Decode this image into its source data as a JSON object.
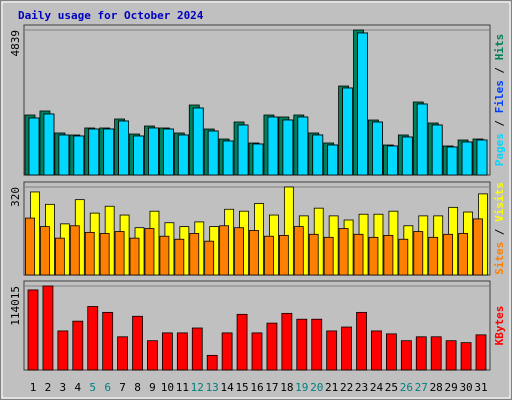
{
  "title": "Daily usage for October 2024",
  "legend_separator": " / ",
  "chart_data": [
    {
      "type": "bar",
      "ylim": [
        0,
        4839
      ],
      "yticks": [
        4839
      ],
      "series": [
        {
          "name": "Hits",
          "color": "#00805c",
          "values": [
            2002,
            2136,
            1402,
            1335,
            1569,
            1569,
            1869,
            1368,
            1635,
            1569,
            1402,
            2336,
            1535,
            1201,
            1769,
            1068,
            2002,
            1936,
            2002,
            1402,
            1068,
            2970,
            4839,
            1835,
            1001,
            1335,
            2436,
            1735,
            968,
            1168,
            1201
          ]
        },
        {
          "name": "Files",
          "color": "#0040ff",
          "values": [
            1902,
            2036,
            1335,
            1301,
            1535,
            1535,
            1802,
            1301,
            1568,
            1535,
            1335,
            2236,
            1468,
            1135,
            1669,
            1034,
            1935,
            1835,
            1935,
            1335,
            1001,
            2903,
            4739,
            1768,
            968,
            1268,
            2369,
            1668,
            935,
            1101,
            1168
          ]
        },
        {
          "name": "Pages",
          "color": "#00d8ff",
          "values": [
            1902,
            2036,
            1335,
            1301,
            1535,
            1535,
            1802,
            1301,
            1568,
            1535,
            1335,
            2236,
            1468,
            1135,
            1669,
            1034,
            1935,
            1835,
            1935,
            1335,
            1001,
            2903,
            4739,
            1768,
            968,
            1268,
            2369,
            1668,
            935,
            1101,
            1168
          ]
        }
      ]
    },
    {
      "type": "bar",
      "ylim": [
        0,
        320
      ],
      "yticks": [
        320
      ],
      "series": [
        {
          "name": "Visits",
          "color": "#ffff00",
          "values": [
            302,
            257,
            186,
            274,
            225,
            250,
            218,
            172,
            232,
            190,
            176,
            193,
            176,
            239,
            232,
            260,
            218,
            320,
            215,
            243,
            215,
            200,
            221,
            221,
            232,
            179,
            215,
            215,
            246,
            229,
            295
          ]
        },
        {
          "name": "Sites",
          "color": "#ff8000",
          "values": [
            207,
            176,
            134,
            179,
            155,
            151,
            158,
            134,
            169,
            141,
            130,
            151,
            123,
            179,
            172,
            162,
            141,
            144,
            176,
            148,
            137,
            169,
            148,
            137,
            144,
            130,
            158,
            137,
            148,
            151,
            204
          ]
        }
      ]
    },
    {
      "type": "bar",
      "ylim": [
        0,
        114015
      ],
      "yticks": [
        114015
      ],
      "categories": [
        "1",
        "2",
        "3",
        "4",
        "5",
        "6",
        "7",
        "8",
        "9",
        "10",
        "11",
        "12",
        "13",
        "14",
        "15",
        "16",
        "17",
        "18",
        "19",
        "20",
        "21",
        "22",
        "23",
        "24",
        "25",
        "26",
        "27",
        "28",
        "29",
        "30",
        "31"
      ],
      "category_colors": [
        "#000000",
        "#000000",
        "#000000",
        "#000000",
        "#008080",
        "#008080",
        "#000000",
        "#000000",
        "#000000",
        "#000000",
        "#000000",
        "#008080",
        "#008080",
        "#000000",
        "#000000",
        "#000000",
        "#000000",
        "#000000",
        "#008080",
        "#008080",
        "#000000",
        "#000000",
        "#000000",
        "#000000",
        "#000000",
        "#008080",
        "#008080",
        "#000000",
        "#000000",
        "#000000",
        "#000000"
      ],
      "series": [
        {
          "name": "KBytes",
          "color": "#ff0000",
          "values": [
            108712,
            114015,
            53030,
            66288,
            86174,
            78219,
            45070,
            72916,
            39772,
            50377,
            50377,
            57005,
            19886,
            50377,
            75568,
            50377,
            63635,
            76894,
            68937,
            68937,
            53030,
            58333,
            78219,
            53030,
            49052,
            39772,
            45070,
            45070,
            39772,
            37121,
            47727
          ]
        }
      ]
    }
  ]
}
